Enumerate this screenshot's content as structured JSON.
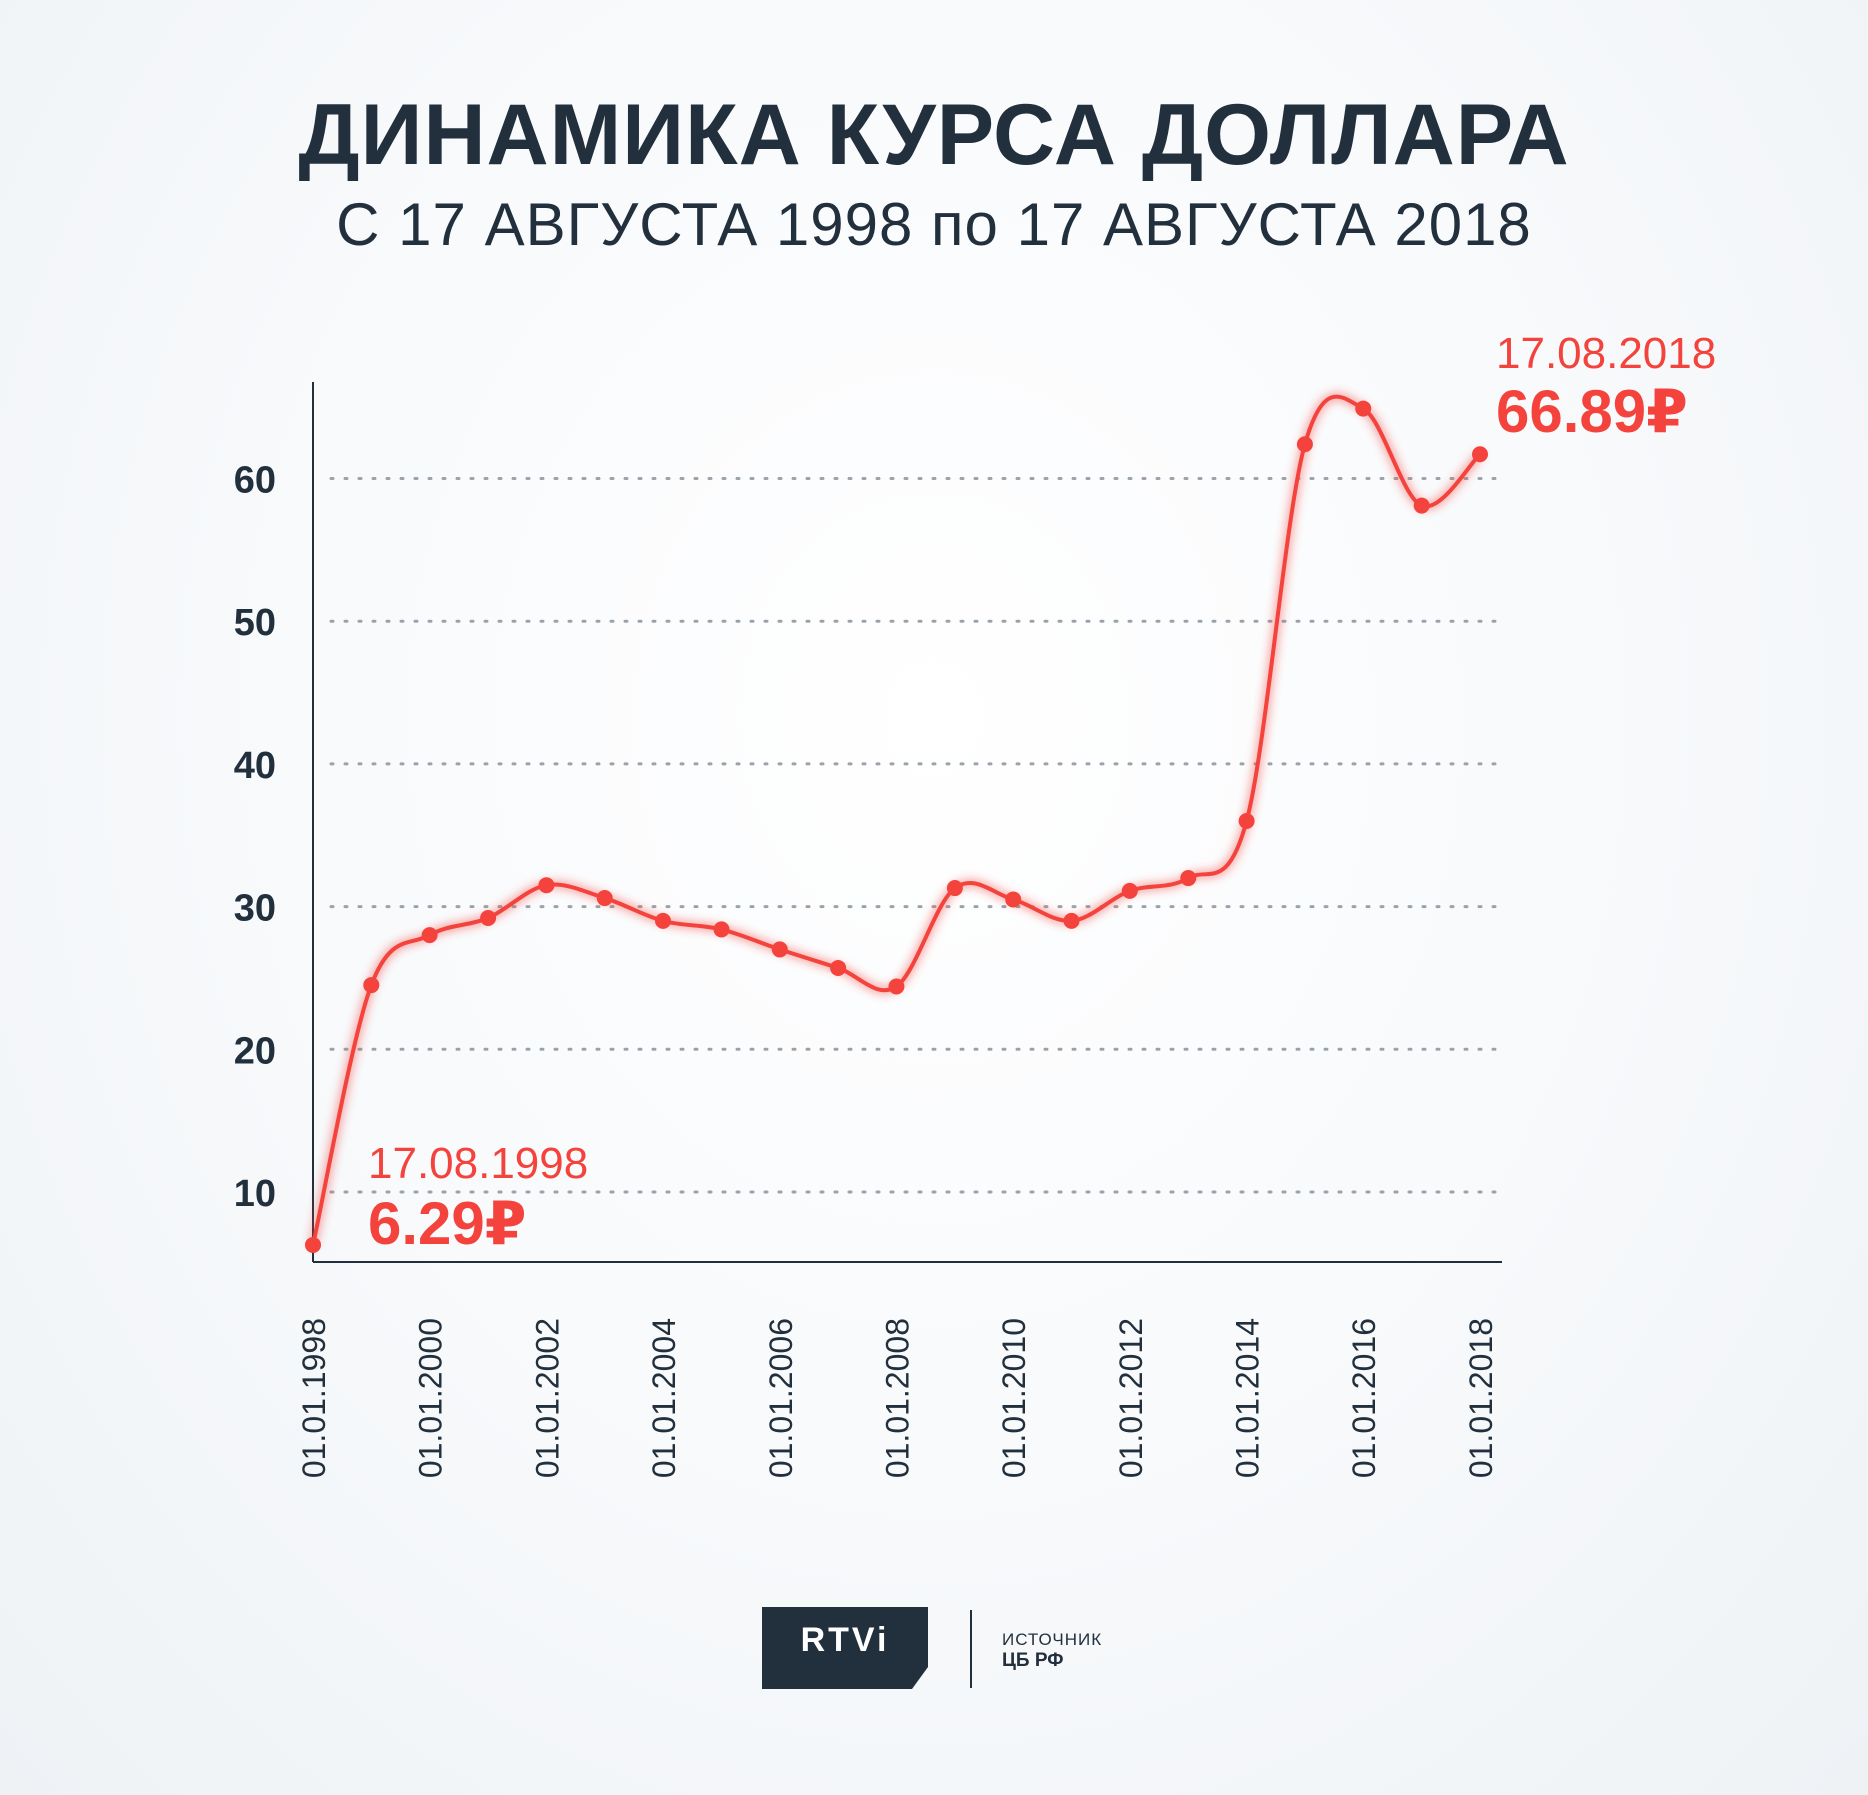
{
  "header": {
    "title": "ДИНАМИКА КУРСА ДОЛЛАРА",
    "subtitle": "С 17 АВГУСТА 1998 по 17 АВГУСТА 2018"
  },
  "colors": {
    "line": "#f4433c",
    "text": "#22303e",
    "grid": "#9aa3ab"
  },
  "chart_data": {
    "type": "line",
    "title": "ДИНАМИКА КУРСА ДОЛЛАРА",
    "subtitle": "С 17 АВГУСТА 1998 по 17 АВГУСТА 2018",
    "xlabel": "",
    "ylabel": "",
    "ylim": [
      5,
      67
    ],
    "xlim": [
      "1998-01-01",
      "2018-03-01"
    ],
    "yticks": [
      10,
      20,
      30,
      40,
      50,
      60
    ],
    "xticks": [
      "01.01.1998",
      "01.01.2000",
      "01.01.2002",
      "01.01.2004",
      "01.01.2006",
      "01.01.2008",
      "01.01.2010",
      "01.01.2012",
      "01.01.2014",
      "01.01.2016",
      "01.01.2018"
    ],
    "grid": "horizontal dotted",
    "series": [
      {
        "x": [
          "1998-01-01",
          "1999-01-01",
          "2000-01-01",
          "2001-01-01",
          "2002-01-01",
          "2003-01-01",
          "2004-01-01",
          "2005-01-01",
          "2006-01-01",
          "2007-01-01",
          "2008-01-01",
          "2009-01-01",
          "2010-01-01",
          "2011-01-01",
          "2012-01-01",
          "2013-01-01",
          "2014-01-01",
          "2015-01-01",
          "2016-01-01",
          "2017-01-01",
          "2018-01-01"
        ],
        "values": [
          6.29,
          24.5,
          28.0,
          29.2,
          31.5,
          30.6,
          29.0,
          28.4,
          27.0,
          25.7,
          24.4,
          31.3,
          30.5,
          29.0,
          31.1,
          32.0,
          36.0,
          62.4,
          64.9,
          58.1,
          61.7
        ]
      }
    ],
    "annotations": [
      {
        "date": "17.08.1998",
        "value": "6.29₽"
      },
      {
        "date": "17.08.2018",
        "value": "66.89₽"
      }
    ]
  },
  "footer": {
    "logo": "RTVi",
    "source_label": "ИСТОЧНИК",
    "source_value": "ЦБ РФ"
  }
}
